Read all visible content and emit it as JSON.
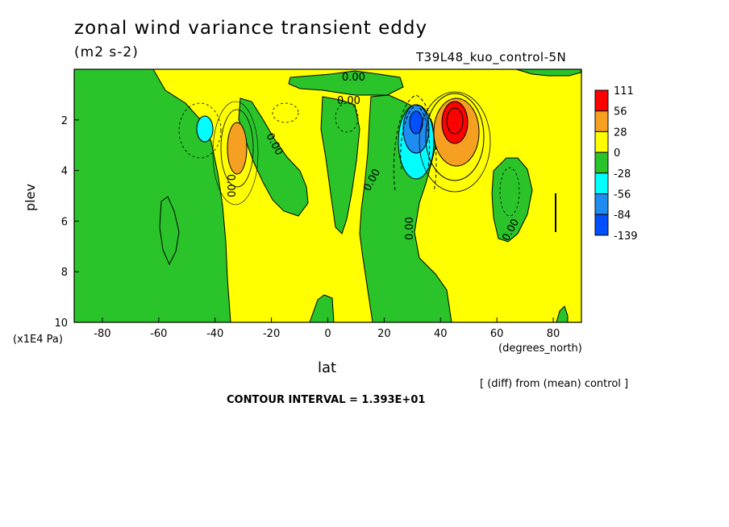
{
  "header": {
    "title": "zonal wind variance transient eddy",
    "units": "(m2 s-2)",
    "run_label": "T39L48_kuo_control-5N"
  },
  "axes": {
    "ylabel": "plev",
    "yunits": "(x1E4 Pa)",
    "xlabel": "lat",
    "xunits": "(degrees_north)"
  },
  "notes": {
    "diff": "[ (diff) from (mean) control ]",
    "contour_interval": "CONTOUR INTERVAL = 1.393E+01"
  },
  "contour_labels": [
    "0.00",
    "0.00",
    "0.00",
    "0.00",
    "0.00",
    "0.00",
    "0.00"
  ],
  "chart_data": {
    "type": "heatmap",
    "title": "zonal wind variance transient eddy",
    "subtitle": "(m2 s-2)",
    "xlabel": "lat",
    "ylabel": "plev",
    "xlim": [
      -90,
      90
    ],
    "ylim": [
      0,
      10
    ],
    "y_inverted": true,
    "xticks": [
      "-80",
      "-60",
      "-40",
      "-20",
      "0",
      "20",
      "40",
      "60",
      "80"
    ],
    "xtick_values": [
      -80,
      -60,
      -40,
      -20,
      0,
      20,
      40,
      60,
      80
    ],
    "yticks": [
      "2",
      "4",
      "6",
      "8",
      "10"
    ],
    "ytick_values": [
      2,
      4,
      6,
      8,
      10
    ],
    "colorbar": {
      "labels": [
        "111",
        "56",
        "28",
        "0",
        "-28",
        "-56",
        "-84",
        "-139"
      ],
      "colors": [
        "#ff0000",
        "#f6a021",
        "#ffff00",
        "#2ac42a",
        "#00ffff",
        "#1e8cf0",
        "#0050ff"
      ]
    },
    "features": [
      {
        "lat": 44,
        "plev": 2.2,
        "value": 111,
        "sign": "positive"
      },
      {
        "lat": 31,
        "plev": 2.5,
        "value": -84,
        "sign": "negative"
      },
      {
        "lat": -31,
        "plev": 2.9,
        "value": 40,
        "sign": "positive"
      },
      {
        "lat": -44,
        "plev": 2.4,
        "value": -40,
        "sign": "negative"
      }
    ],
    "grid": false
  }
}
